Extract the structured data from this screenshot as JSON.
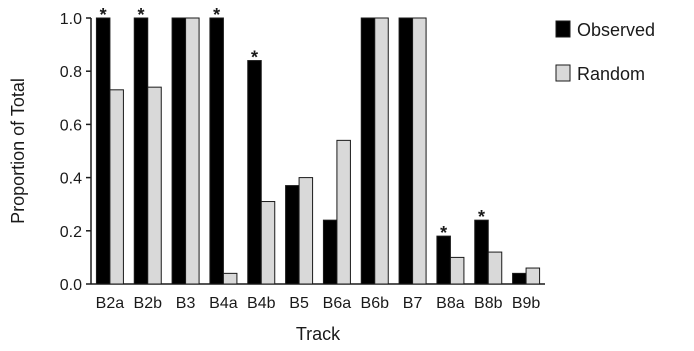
{
  "chart_data": {
    "type": "bar",
    "xlabel": "Track",
    "ylabel": "Proportion of Total",
    "ylim": [
      0,
      1.0
    ],
    "yticks": [
      "0.0",
      "0.2",
      "0.4",
      "0.6",
      "0.8",
      "1.0"
    ],
    "categories": [
      "B2a",
      "B2b",
      "B3",
      "B4a",
      "B4b",
      "B5",
      "B6a",
      "B6b",
      "B7",
      "B8a",
      "B8b",
      "B9b"
    ],
    "series": [
      {
        "name": "Observed",
        "color": "#000000",
        "values": [
          1.0,
          1.0,
          1.0,
          1.0,
          0.84,
          0.37,
          0.24,
          1.0,
          1.0,
          0.18,
          0.24,
          0.04
        ]
      },
      {
        "name": "Random",
        "color": "#d9d9d9",
        "values": [
          0.73,
          0.74,
          1.0,
          0.04,
          0.31,
          0.4,
          0.54,
          1.0,
          1.0,
          0.1,
          0.12,
          0.06
        ]
      }
    ],
    "significance_marker": "*",
    "significant_categories": [
      "B2a",
      "B2b",
      "B4a",
      "B4b",
      "B8a",
      "B8b"
    ],
    "legend_position": "top-right",
    "grid": false
  }
}
